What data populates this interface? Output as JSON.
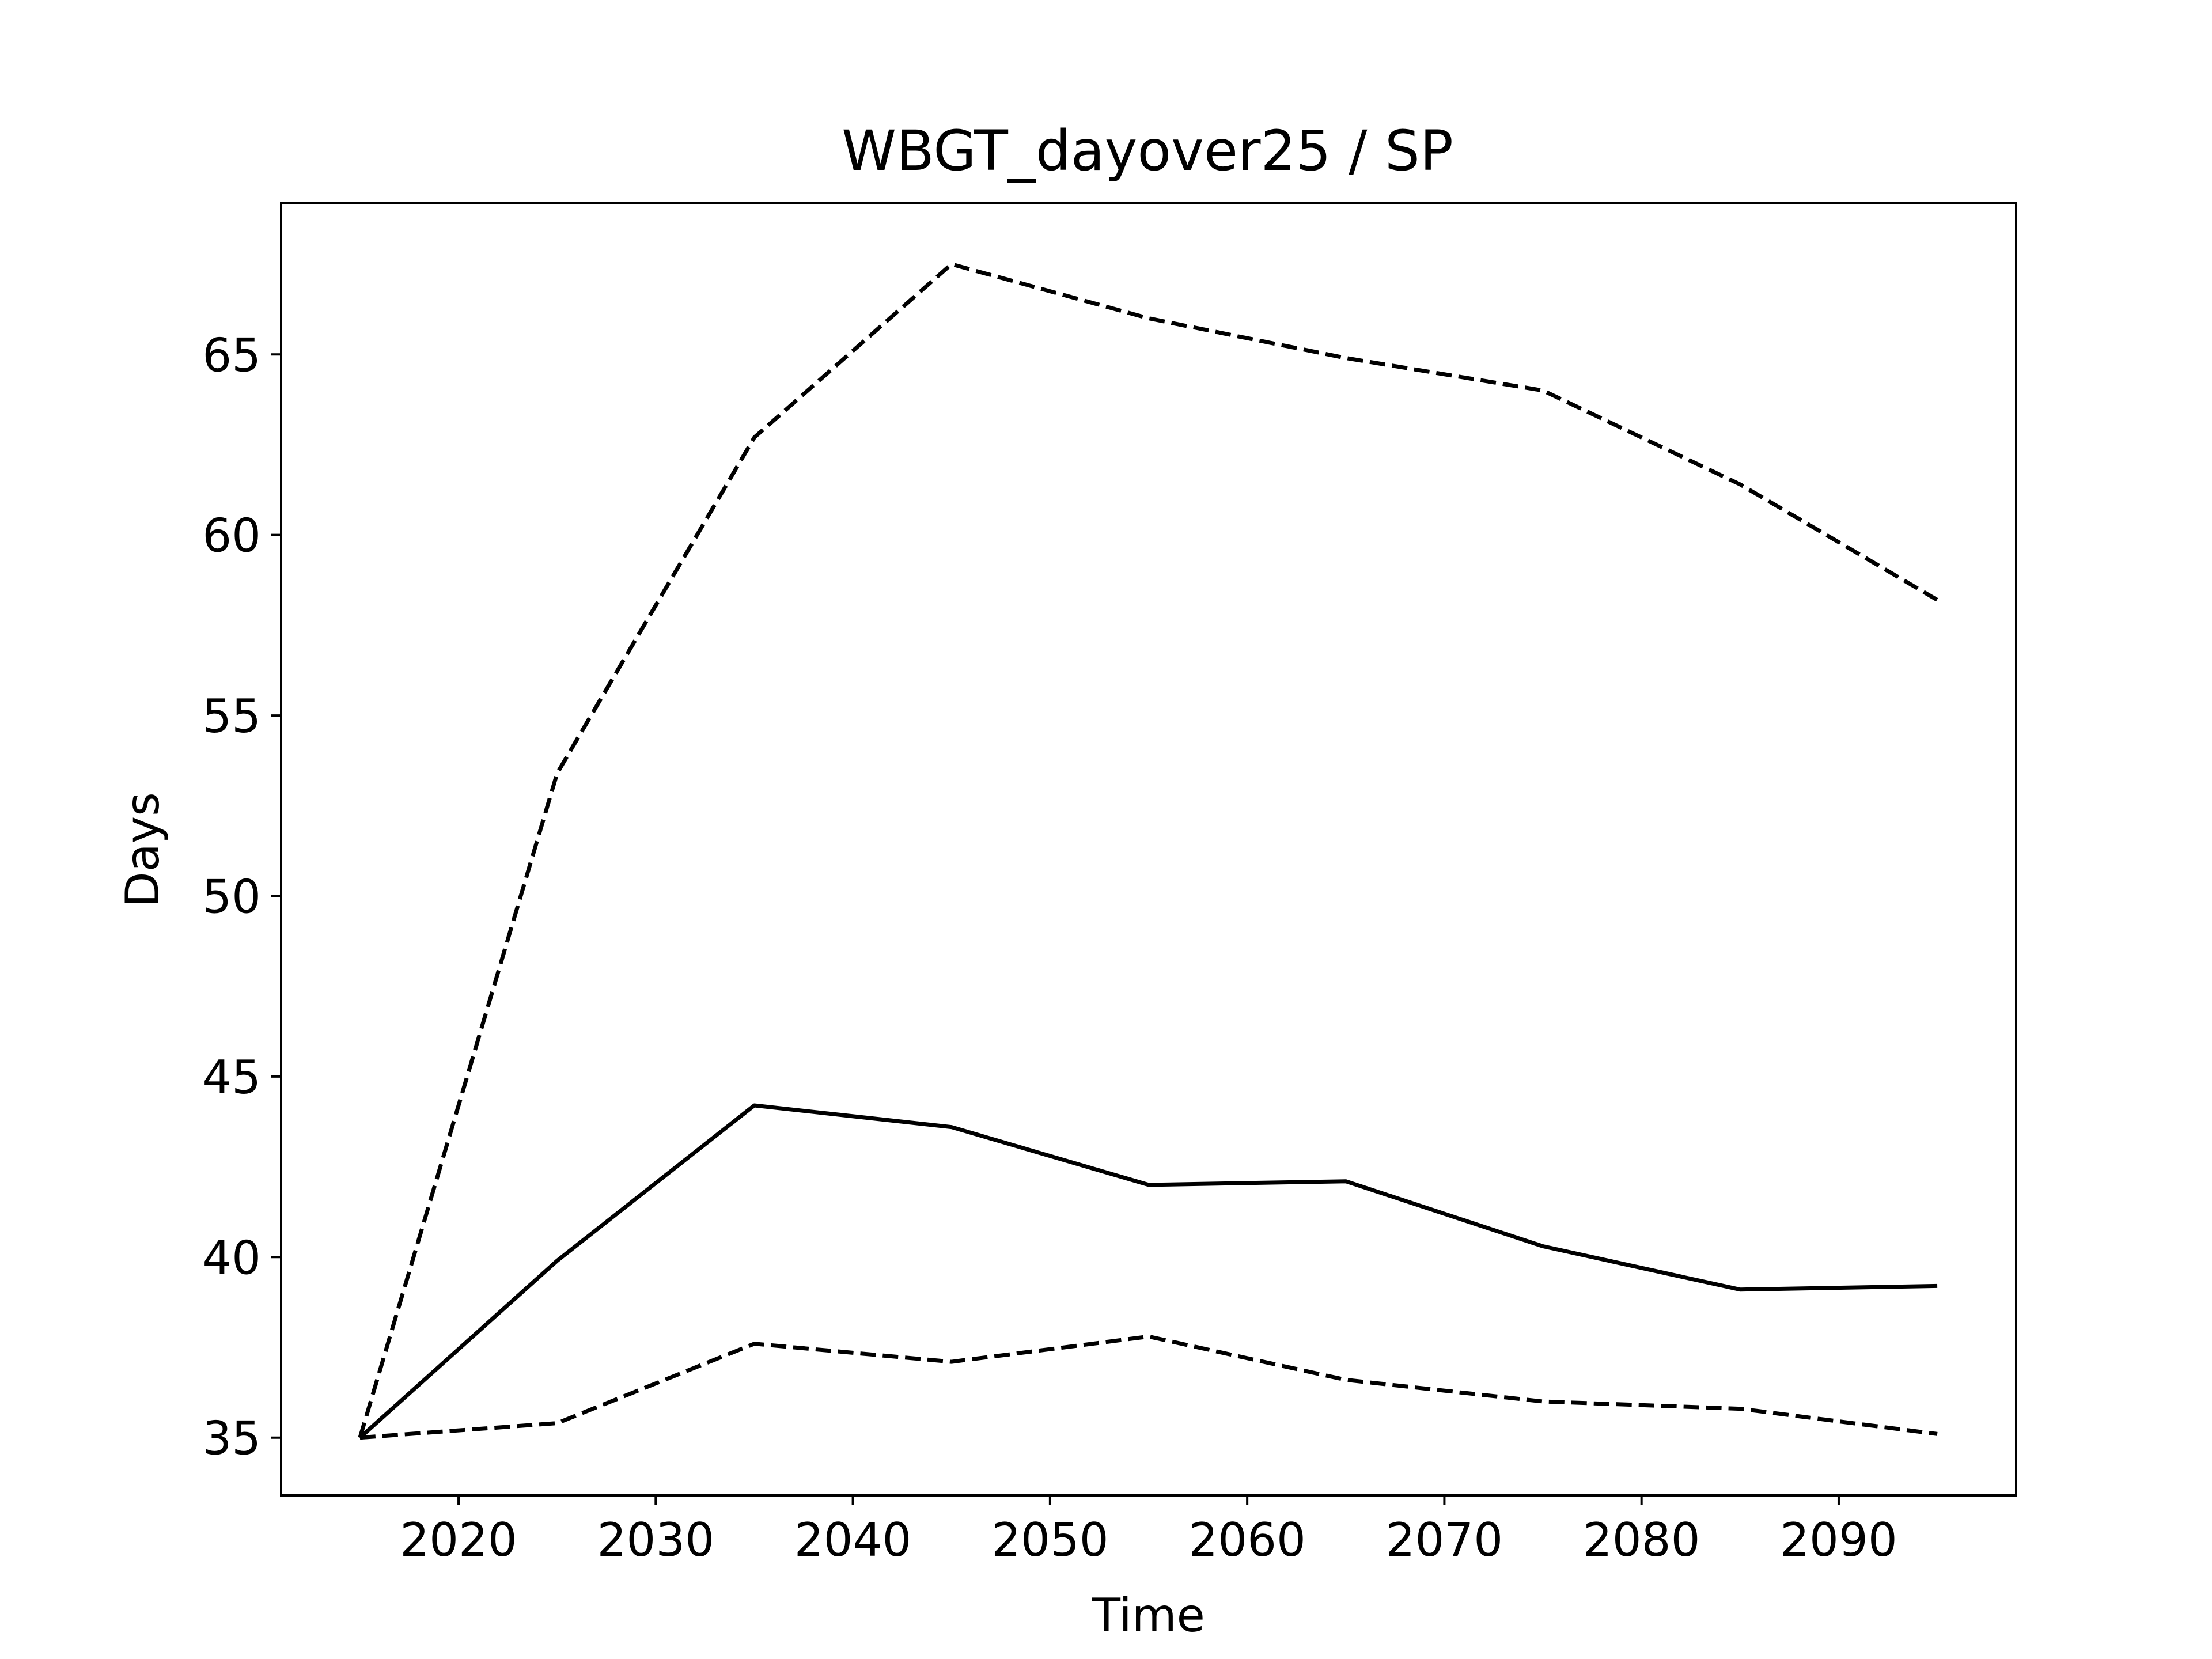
{
  "chart_data": {
    "type": "line",
    "title": "WBGT_dayover25 / SP",
    "xlabel": "Time",
    "ylabel": "Days",
    "xlim": [
      2011,
      2099
    ],
    "ylim": [
      33.4,
      69.2
    ],
    "xticks": [
      2020,
      2030,
      2040,
      2050,
      2060,
      2070,
      2080,
      2090
    ],
    "yticks": [
      35,
      40,
      45,
      50,
      55,
      60,
      65
    ],
    "grid": false,
    "legend": "none",
    "x": [
      2015,
      2025,
      2035,
      2045,
      2055,
      2065,
      2075,
      2085,
      2095
    ],
    "series": [
      {
        "values": [
          35.0,
          53.4,
          62.7,
          67.5,
          66.0,
          64.9,
          64.0,
          61.4,
          58.2
        ],
        "style": "dashed",
        "color": "#000000"
      },
      {
        "values": [
          35.0,
          39.9,
          44.2,
          43.6,
          42.0,
          42.1,
          40.3,
          39.1,
          39.2
        ],
        "style": "solid",
        "color": "#000000"
      },
      {
        "values": [
          35.0,
          35.4,
          37.6,
          37.1,
          37.8,
          36.6,
          36.0,
          35.8,
          35.1
        ],
        "style": "dashed",
        "color": "#000000"
      }
    ]
  }
}
